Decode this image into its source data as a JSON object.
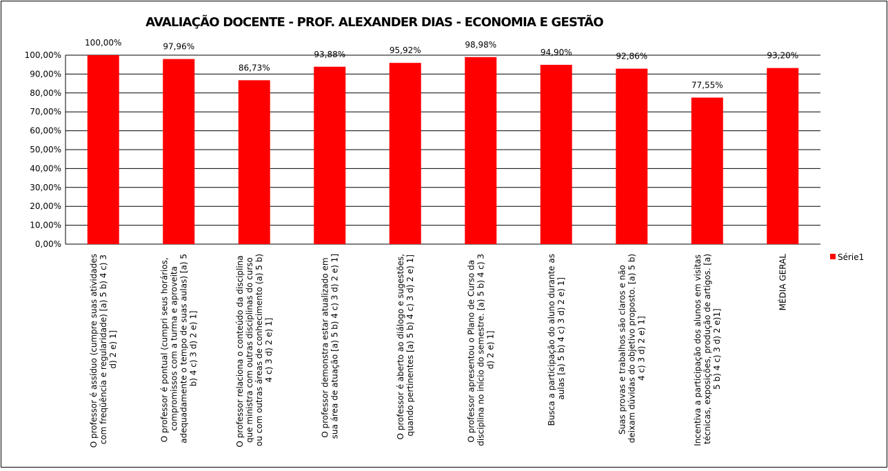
{
  "chart_data": {
    "type": "bar",
    "title": "AVALIAÇÃO DOCENTE - PROF. ALEXANDER DIAS - ECONOMIA E GESTÃO",
    "categories": [
      "O professor é assíduo (cumpre suas atividades com freqüência e regularidade) [a) 5 b) 4 c) 3 d) 2 e) 1]",
      "O professor é pontual (cumpri seus horários, compromissos com a turma e aproveita adequadamente o tempo de suas aulas) [a) 5 b) 4 c) 3 d) 2 e) 1]",
      "O professor relaciona o conteúdo da disciplina que ministra com outras disciplinas do curso ou com outras áreas de conhecimento (a) 5 b) 4 c) 3 d) 2 e) 1]",
      "O professor demonstra estar atualizado em sua área de atuação [a) 5 b) 4 c) 3 d) 2 e) 1]",
      "O professor é aberto ao diálogo e sugestões, quando pertinentes [a) 5 b) 4 c) 3 d) 2 e) 1]",
      "O professor apresentou o Plano de Curso da disciplina no início do semestre. [a) 5 b) 4 c) 3 d) 2 e) 1]",
      "Busca a participação do aluno durante as aulas [a) 5 b) 4 c) 3 d) 2 e) 1]",
      "Suas provas e trabalhos são claros e não deixam dúvidas do objetivo proposto. [a) 5 b) 4 c) 3 d) 2 e) 1]",
      "Incentiva a participação dos alunos em visitas técnicas, exposições, produção de artigos. [a) 5 b) 4 c) 3 d) 2 e)1]",
      "MÉDIA GERAL"
    ],
    "series": [
      {
        "name": "Série1",
        "color": "#ff0000",
        "values": [
          100,
          97.96,
          86.73,
          93.88,
          95.92,
          98.98,
          94.9,
          92.86,
          77.55,
          93.2
        ],
        "value_labels": [
          "100,00%",
          "97,96%",
          "86,73%",
          "93,88%",
          "95,92%",
          "98,98%",
          "94,90%",
          "92,86%",
          "77,55%",
          "93,20%"
        ]
      }
    ],
    "ylim": [
      0,
      100
    ],
    "yticks": [
      {
        "value": 0,
        "label": "0,00%"
      },
      {
        "value": 10,
        "label": "10,00%"
      },
      {
        "value": 20,
        "label": "20,00%"
      },
      {
        "value": 30,
        "label": "30,00%"
      },
      {
        "value": 40,
        "label": "40,00%"
      },
      {
        "value": 50,
        "label": "50,00%"
      },
      {
        "value": 60,
        "label": "60,00%"
      },
      {
        "value": 70,
        "label": "70,00%"
      },
      {
        "value": 80,
        "label": "80,00%"
      },
      {
        "value": 90,
        "label": "90,00%"
      },
      {
        "value": 100,
        "label": "100,00%"
      }
    ],
    "grid": true,
    "legend": "right"
  }
}
